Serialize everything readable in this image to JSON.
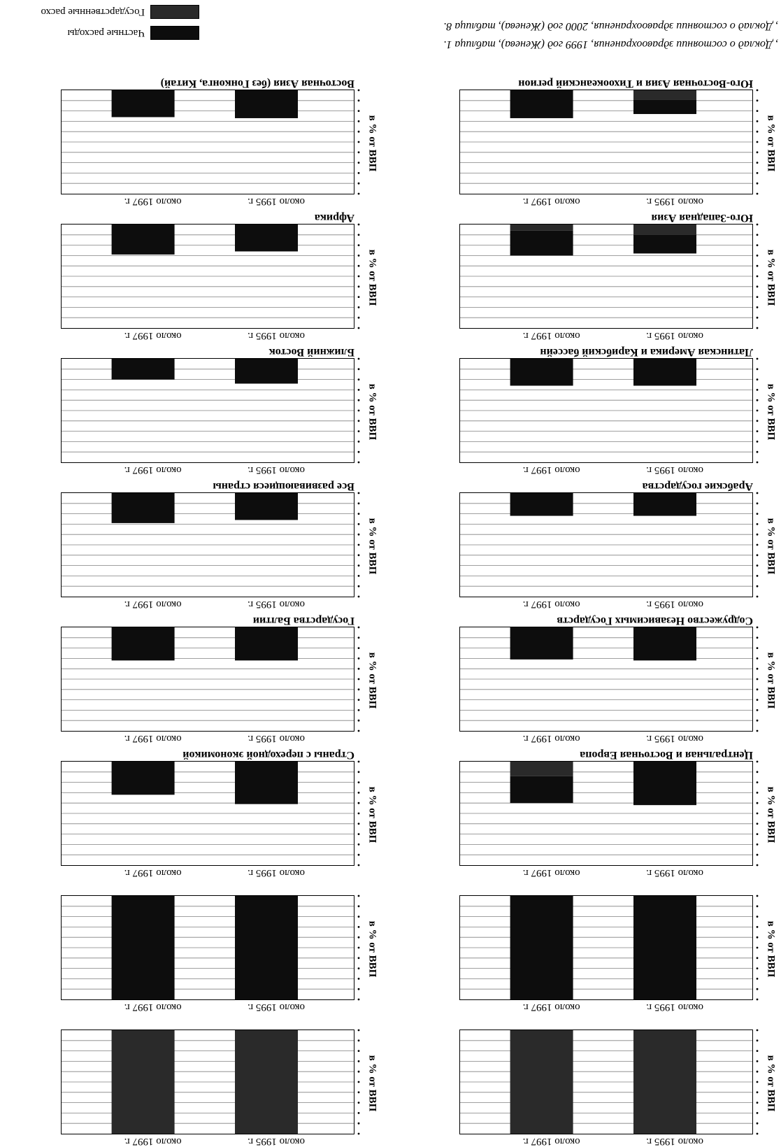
{
  "colors": {
    "private": "#0d0d0d",
    "public": "#2a2a2a",
    "grid": "#808080",
    "frame": "#000000"
  },
  "legend": {
    "private_label": "Частные расходы",
    "public_label": "Государственные расхо"
  },
  "footnotes": {
    "line1": ", Доклад о состоянии здравоохранения, 1999 год (Женева), таблица 1.",
    "line2": ", Доклад о состоянии здравоохранения, 2000 год (Женева), таблица 8."
  },
  "y_axis_label": "в % от ВВП",
  "chart_data": [
    {
      "type": "bar",
      "title": "",
      "categories": [
        "около 1995 г.",
        "около 1997 г."
      ],
      "ylabel": "в % от ВВП",
      "series": [
        {
          "name": "Частные расходы",
          "values": [
            0,
            0
          ]
        },
        {
          "name": "Государственные расхо",
          "values": [
            10,
            10
          ]
        }
      ],
      "ylim": [
        0,
        10
      ],
      "grid": true
    },
    {
      "type": "bar",
      "title": "",
      "categories": [
        "около 1995 г.",
        "около 1997 г."
      ],
      "ylabel": "в % от ВВП",
      "series": [
        {
          "name": "Частные расходы",
          "values": [
            10,
            10
          ]
        },
        {
          "name": "Государственные расхо",
          "values": [
            0,
            0
          ]
        }
      ],
      "ylim": [
        0,
        10
      ],
      "grid": true
    },
    {
      "type": "bar",
      "title": "Центральная и Восточная Европа",
      "categories": [
        "около 1995 г.",
        "около 1997 г."
      ],
      "ylabel": "в % от ВВП",
      "series": [
        {
          "name": "Частные расходы",
          "values": [
            4.2,
            2.6
          ]
        },
        {
          "name": "Государственные расхо",
          "values": [
            0,
            1.4
          ]
        }
      ],
      "ylim": [
        0,
        10
      ],
      "grid": true
    },
    {
      "type": "bar",
      "title": "Содружество Независимых Государств",
      "categories": [
        "около 1995 г.",
        "около 1997 г."
      ],
      "ylabel": "в % от ВВП",
      "series": [
        {
          "name": "Частные расходы",
          "values": [
            3.2,
            3.1
          ]
        },
        {
          "name": "Государственные расхо",
          "values": [
            0,
            0
          ]
        }
      ],
      "ylim": [
        0,
        10
      ],
      "grid": true
    },
    {
      "type": "bar",
      "title": "Арабские государства",
      "categories": [
        "около 1995 г.",
        "около 1997 г."
      ],
      "ylabel": "в % от ВВП",
      "series": [
        {
          "name": "Частные расходы",
          "values": [
            2.2,
            2.2
          ]
        },
        {
          "name": "Государственные расхо",
          "values": [
            0,
            0
          ]
        }
      ],
      "ylim": [
        0,
        10
      ],
      "grid": true
    },
    {
      "type": "bar",
      "title": "Латинская Америка и Карибский бассейн",
      "categories": [
        "около 1995 г.",
        "около 1997 г."
      ],
      "ylabel": "в % от ВВП",
      "series": [
        {
          "name": "Частные расходы",
          "values": [
            2.6,
            2.6
          ]
        },
        {
          "name": "Государственные расхо",
          "values": [
            0,
            0
          ]
        }
      ],
      "ylim": [
        0,
        10
      ],
      "grid": true
    },
    {
      "type": "bar",
      "title": "Юго-Западная Азия",
      "categories": [
        "около 1995 г.",
        "около 1997 г."
      ],
      "ylabel": "в % от ВВП",
      "series": [
        {
          "name": "Частные расходы",
          "values": [
            1.8,
            2.4
          ]
        },
        {
          "name": "Государственные расхо",
          "values": [
            1.0,
            0.6
          ]
        }
      ],
      "ylim": [
        0,
        10
      ],
      "grid": true
    },
    {
      "type": "bar",
      "title": "Юго-Восточная Азия и Тихоокеанский регион",
      "categories": [
        "около 1995 г.",
        "около 1997 г."
      ],
      "ylabel": "в % от ВВП",
      "series": [
        {
          "name": "Частные расходы",
          "values": [
            1.4,
            2.7
          ]
        },
        {
          "name": "Государственные расхо",
          "values": [
            0.9,
            0
          ]
        }
      ],
      "ylim": [
        0,
        10
      ],
      "grid": true
    },
    {
      "type": "bar",
      "title": "",
      "categories": [
        "около 1995 г.",
        "около 1997 г."
      ],
      "ylabel": "в % от ВВП",
      "series": [
        {
          "name": "Частные расходы",
          "values": [
            0,
            0
          ]
        },
        {
          "name": "Государственные расхо",
          "values": [
            10,
            10
          ]
        }
      ],
      "ylim": [
        0,
        10
      ],
      "grid": true
    },
    {
      "type": "bar",
      "title": "",
      "categories": [
        "около 1995 г.",
        "около 1997 г."
      ],
      "ylabel": "в % от ВВП",
      "series": [
        {
          "name": "Частные расходы",
          "values": [
            10,
            10
          ]
        },
        {
          "name": "Государственные расхо",
          "values": [
            0,
            0
          ]
        }
      ],
      "ylim": [
        0,
        10
      ],
      "grid": true
    },
    {
      "type": "bar",
      "title": "Страны с переходной экономикой",
      "categories": [
        "около 1995 г.",
        "около 1997 г."
      ],
      "ylabel": "в % от ВВП",
      "series": [
        {
          "name": "Частные расходы",
          "values": [
            4.1,
            3.2
          ]
        },
        {
          "name": "Государственные расхо",
          "values": [
            0,
            0
          ]
        }
      ],
      "ylim": [
        0,
        10
      ],
      "grid": true
    },
    {
      "type": "bar",
      "title": "Государства Балтии",
      "categories": [
        "около 1995 г.",
        "около 1997 г."
      ],
      "ylabel": "в % от ВВП",
      "series": [
        {
          "name": "Частные расходы",
          "values": [
            3.2,
            3.2
          ]
        },
        {
          "name": "Государственные расхо",
          "values": [
            0,
            0
          ]
        }
      ],
      "ylim": [
        0,
        10
      ],
      "grid": true
    },
    {
      "type": "bar",
      "title": "Все развивающиеся страны",
      "categories": [
        "около 1995 г.",
        "около 1997 г."
      ],
      "ylabel": "в % от ВВП",
      "series": [
        {
          "name": "Частные расходы",
          "values": [
            2.6,
            2.9
          ]
        },
        {
          "name": "Государственные расхо",
          "values": [
            0,
            0
          ]
        }
      ],
      "ylim": [
        0,
        10
      ],
      "grid": true
    },
    {
      "type": "bar",
      "title": "Ближний Восток",
      "categories": [
        "около 1995 г.",
        "около 1997 г."
      ],
      "ylabel": "в % от ВВП",
      "series": [
        {
          "name": "Частные расходы",
          "values": [
            2.4,
            2.0
          ]
        },
        {
          "name": "Государственные расхо",
          "values": [
            0,
            0
          ]
        }
      ],
      "ylim": [
        0,
        10
      ],
      "grid": true
    },
    {
      "type": "bar",
      "title": "Африка",
      "categories": [
        "около 1995 г.",
        "около 1997 г."
      ],
      "ylabel": "в % от ВВП",
      "series": [
        {
          "name": "Частные расходы",
          "values": [
            2.6,
            2.9
          ]
        },
        {
          "name": "Государственные расхо",
          "values": [
            0,
            0
          ]
        }
      ],
      "ylim": [
        0,
        10
      ],
      "grid": true
    },
    {
      "type": "bar",
      "title": "Восточная Азия (без Гонконга, Китай)",
      "categories": [
        "около 1995 г.",
        "около 1997 г."
      ],
      "ylabel": "в % от ВВП",
      "series": [
        {
          "name": "Частные расходы",
          "values": [
            2.7,
            2.6
          ]
        },
        {
          "name": "Государственные расхо",
          "values": [
            0,
            0
          ]
        }
      ],
      "ylim": [
        0,
        10
      ],
      "grid": true
    }
  ]
}
